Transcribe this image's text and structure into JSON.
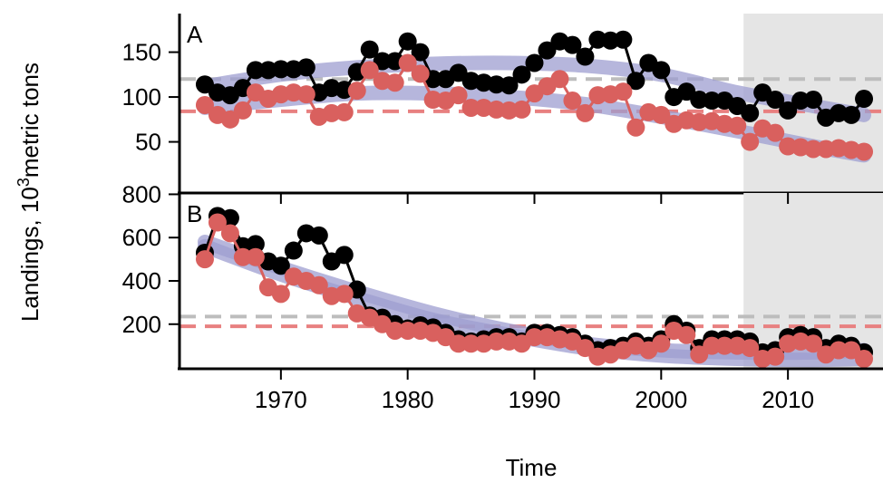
{
  "y_label": [
    "Landings, 10",
    "3",
    "metric tons"
  ],
  "chart_data": [
    {
      "type": "line",
      "panel_label": "A",
      "x": [
        1964,
        1965,
        1966,
        1967,
        1968,
        1969,
        1970,
        1971,
        1972,
        1973,
        1974,
        1975,
        1976,
        1977,
        1978,
        1979,
        1980,
        1981,
        1982,
        1983,
        1984,
        1985,
        1986,
        1987,
        1988,
        1989,
        1990,
        1991,
        1992,
        1993,
        1994,
        1995,
        1996,
        1997,
        1998,
        1999,
        2000,
        2001,
        2002,
        2003,
        2004,
        2005,
        2006,
        2007,
        2008,
        2009,
        2010,
        2011,
        2012,
        2013,
        2014,
        2015,
        2016
      ],
      "series": [
        {
          "color": "#000000",
          "values": [
            114,
            105,
            102,
            110,
            130,
            130,
            131,
            131,
            133,
            105,
            110,
            108,
            128,
            153,
            140,
            140,
            162,
            150,
            120,
            120,
            127,
            118,
            116,
            114,
            113,
            125,
            138,
            152,
            162,
            158,
            145,
            164,
            163,
            164,
            118,
            138,
            130,
            100,
            106,
            97,
            96,
            96,
            90,
            82,
            105,
            97,
            85,
            96,
            97,
            77,
            82,
            80,
            98
          ]
        },
        {
          "color": "#d9605e",
          "values": [
            91,
            80,
            75,
            85,
            105,
            98,
            103,
            105,
            103,
            78,
            82,
            83,
            107,
            130,
            118,
            116,
            138,
            126,
            97,
            96,
            102,
            88,
            88,
            86,
            85,
            86,
            104,
            112,
            120,
            96,
            82,
            102,
            103,
            106,
            66,
            83,
            80,
            70,
            74,
            72,
            73,
            70,
            68,
            50,
            65,
            60,
            45,
            44,
            42,
            42,
            43,
            41,
            39
          ]
        }
      ],
      "bands": [
        {
          "color": "#9d9dd0",
          "x": [
            1964,
            1970,
            1976,
            1982,
            1988,
            1994,
            2000,
            2006,
            2012,
            2016
          ],
          "values": [
            112,
            125,
            133,
            137,
            138,
            135,
            125,
            105,
            90,
            80
          ]
        },
        {
          "color": "#9d9dd0",
          "x": [
            1964,
            1970,
            1976,
            1982,
            1988,
            1994,
            2000,
            2006,
            2012,
            2016
          ],
          "values": [
            88,
            97,
            104,
            104,
            100,
            92,
            78,
            62,
            45,
            35
          ]
        }
      ],
      "hlines": [
        {
          "value": 120,
          "color": "#bdbdbd"
        },
        {
          "value": 84,
          "color": "#e88080"
        }
      ],
      "shade_from": 2006.5,
      "xlim": [
        1962,
        2017.5
      ],
      "ylim": [
        -7,
        193
      ],
      "yticks": [
        50,
        100,
        150
      ]
    },
    {
      "type": "line",
      "panel_label": "B",
      "x": [
        1964,
        1965,
        1966,
        1967,
        1968,
        1969,
        1970,
        1971,
        1972,
        1973,
        1974,
        1975,
        1976,
        1977,
        1978,
        1979,
        1980,
        1981,
        1982,
        1983,
        1984,
        1985,
        1986,
        1987,
        1988,
        1989,
        1990,
        1991,
        1992,
        1993,
        1994,
        1995,
        1996,
        1997,
        1998,
        1999,
        2000,
        2001,
        2002,
        2003,
        2004,
        2005,
        2006,
        2007,
        2008,
        2009,
        2010,
        2011,
        2012,
        2013,
        2014,
        2015,
        2016
      ],
      "series": [
        {
          "color": "#000000",
          "values": [
            530,
            700,
            690,
            560,
            570,
            490,
            470,
            540,
            620,
            610,
            490,
            520,
            360,
            240,
            230,
            200,
            180,
            195,
            185,
            160,
            130,
            120,
            130,
            140,
            140,
            120,
            160,
            160,
            150,
            140,
            110,
            80,
            90,
            100,
            120,
            100,
            130,
            200,
            170,
            90,
            130,
            130,
            130,
            120,
            70,
            80,
            140,
            150,
            140,
            90,
            110,
            100,
            70
          ]
        },
        {
          "color": "#d9605e",
          "values": [
            500,
            670,
            620,
            510,
            510,
            370,
            340,
            420,
            400,
            380,
            330,
            340,
            250,
            230,
            200,
            170,
            170,
            170,
            160,
            140,
            110,
            110,
            110,
            120,
            120,
            110,
            140,
            140,
            130,
            120,
            90,
            50,
            60,
            80,
            100,
            80,
            110,
            170,
            150,
            60,
            100,
            100,
            100,
            90,
            40,
            50,
            110,
            120,
            110,
            60,
            80,
            80,
            40
          ]
        }
      ],
      "bands": [
        {
          "color": "#9d9dd0",
          "x": [
            1964,
            1970,
            1976,
            1982,
            1988,
            1994,
            2000,
            2006,
            2012,
            2016
          ],
          "values": [
            580,
            460,
            350,
            250,
            170,
            110,
            80,
            70,
            70,
            80
          ]
        },
        {
          "color": "#9d9dd0",
          "x": [
            1964,
            1970,
            1976,
            1982,
            1988,
            1994,
            2000,
            2006,
            2012,
            2016
          ],
          "values": [
            560,
            430,
            320,
            220,
            150,
            90,
            55,
            40,
            35,
            40
          ]
        }
      ],
      "hlines": [
        {
          "value": 235,
          "color": "#bdbdbd"
        },
        {
          "value": 190,
          "color": "#e88080"
        }
      ],
      "shade_from": 2006.5,
      "xlim": [
        1962,
        2017.5
      ],
      "ylim": [
        -6,
        806
      ],
      "yticks": [
        200,
        400,
        600,
        800
      ],
      "xticks": [
        1970,
        1980,
        1990,
        2000,
        2010
      ],
      "x_label": "Time"
    }
  ]
}
